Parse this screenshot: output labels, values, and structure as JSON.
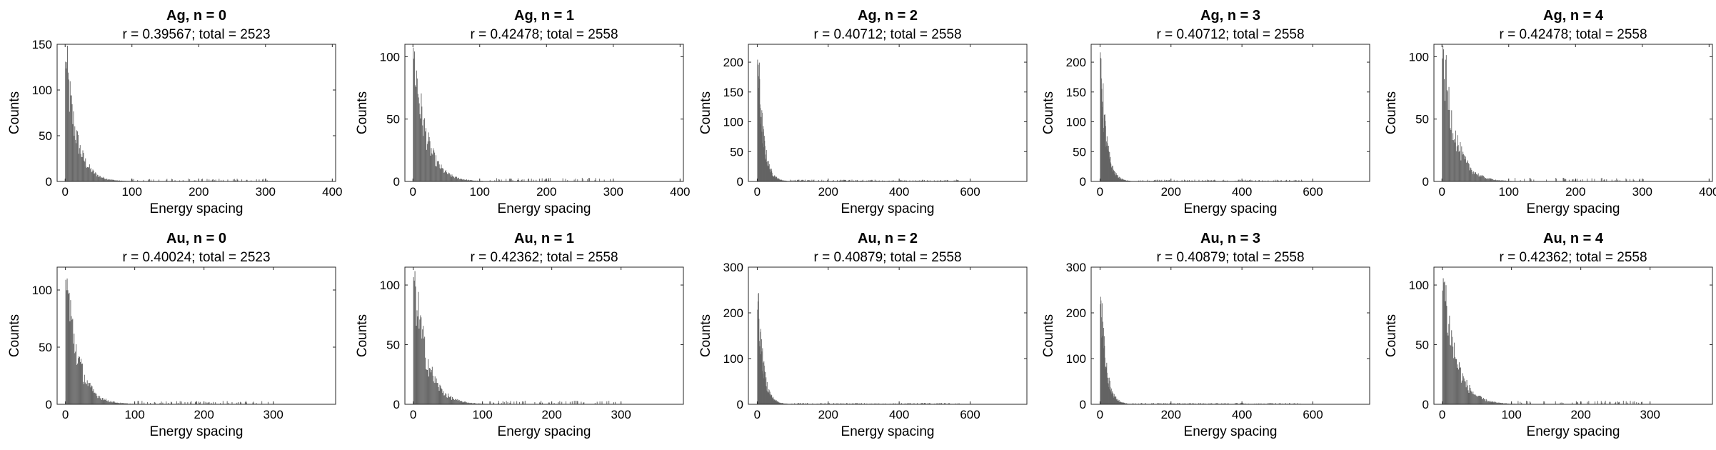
{
  "chart_data": [
    {
      "type": "bar",
      "title": "Ag, n = 0",
      "subtitle": "r = 0.39567; total = 2523",
      "xlabel": "Energy spacing",
      "ylabel": "Counts",
      "xlim": [
        -12,
        405
      ],
      "ylim": [
        0,
        150
      ],
      "xticks": [
        0,
        100,
        200,
        300,
        400
      ],
      "yticks": [
        0,
        50,
        100,
        150
      ],
      "bin_width": 1,
      "peak": 138,
      "decay": 16,
      "color": "#646464"
    },
    {
      "type": "bar",
      "title": "Ag, n = 1",
      "subtitle": "r = 0.42478; total = 2558",
      "xlabel": "Energy spacing",
      "ylabel": "Counts",
      "xlim": [
        -12,
        405
      ],
      "ylim": [
        0,
        110
      ],
      "xticks": [
        0,
        100,
        200,
        300,
        400
      ],
      "yticks": [
        0,
        50,
        100
      ],
      "bin_width": 1,
      "peak": 109,
      "decay": 18,
      "color": "#646464"
    },
    {
      "type": "bar",
      "title": "Ag, n = 2",
      "subtitle": "r = 0.40712; total = 2558",
      "xlabel": "Energy spacing",
      "ylabel": "Counts",
      "xlim": [
        -25,
        760
      ],
      "ylim": [
        0,
        230
      ],
      "xticks": [
        0,
        200,
        400,
        600
      ],
      "yticks": [
        0,
        50,
        100,
        150,
        200
      ],
      "bin_width": 1,
      "peak": 218,
      "decay": 15,
      "color": "#646464"
    },
    {
      "type": "bar",
      "title": "Ag, n = 3",
      "subtitle": "r = 0.40712; total = 2558",
      "xlabel": "Energy spacing",
      "ylabel": "Counts",
      "xlim": [
        -25,
        760
      ],
      "ylim": [
        0,
        230
      ],
      "xticks": [
        0,
        200,
        400,
        600
      ],
      "yticks": [
        0,
        50,
        100,
        150,
        200
      ],
      "bin_width": 1,
      "peak": 218,
      "decay": 15,
      "color": "#646464"
    },
    {
      "type": "bar",
      "title": "Ag, n = 4",
      "subtitle": "r = 0.42478; total = 2558",
      "xlabel": "Energy spacing",
      "ylabel": "Counts",
      "xlim": [
        -12,
        405
      ],
      "ylim": [
        0,
        110
      ],
      "xticks": [
        0,
        100,
        200,
        300,
        400
      ],
      "yticks": [
        0,
        50,
        100
      ],
      "bin_width": 1,
      "peak": 109,
      "decay": 18,
      "color": "#646464"
    },
    {
      "type": "bar",
      "title": "Au, n = 0",
      "subtitle": "r = 0.40024; total = 2523",
      "xlabel": "Energy spacing",
      "ylabel": "Counts",
      "xlim": [
        -12,
        390
      ],
      "ylim": [
        0,
        120
      ],
      "xticks": [
        0,
        100,
        200,
        300
      ],
      "yticks": [
        0,
        50,
        100
      ],
      "bin_width": 1,
      "peak": 116,
      "decay": 17,
      "color": "#646464"
    },
    {
      "type": "bar",
      "title": "Au, n = 1",
      "subtitle": "r = 0.42362; total = 2558",
      "xlabel": "Energy spacing",
      "ylabel": "Counts",
      "xlim": [
        -12,
        390
      ],
      "ylim": [
        0,
        115
      ],
      "xticks": [
        0,
        100,
        200,
        300
      ],
      "yticks": [
        0,
        50,
        100
      ],
      "bin_width": 1,
      "peak": 112,
      "decay": 18,
      "color": "#646464"
    },
    {
      "type": "bar",
      "title": "Au, n = 2",
      "subtitle": "r = 0.40879; total = 2558",
      "xlabel": "Energy spacing",
      "ylabel": "Counts",
      "xlim": [
        -25,
        760
      ],
      "ylim": [
        0,
        300
      ],
      "xticks": [
        0,
        200,
        400,
        600
      ],
      "yticks": [
        0,
        100,
        200,
        300
      ],
      "bin_width": 1,
      "peak": 242,
      "decay": 15,
      "color": "#646464"
    },
    {
      "type": "bar",
      "title": "Au, n = 3",
      "subtitle": "r = 0.40879; total = 2558",
      "xlabel": "Energy spacing",
      "ylabel": "Counts",
      "xlim": [
        -25,
        760
      ],
      "ylim": [
        0,
        300
      ],
      "xticks": [
        0,
        200,
        400,
        600
      ],
      "yticks": [
        0,
        100,
        200,
        300
      ],
      "bin_width": 1,
      "peak": 242,
      "decay": 15,
      "color": "#646464"
    },
    {
      "type": "bar",
      "title": "Au, n = 4",
      "subtitle": "r = 0.42362; total = 2558",
      "xlabel": "Energy spacing",
      "ylabel": "Counts",
      "xlim": [
        -12,
        390
      ],
      "ylim": [
        0,
        115
      ],
      "xticks": [
        0,
        100,
        200,
        300
      ],
      "yticks": [
        0,
        50,
        100
      ],
      "bin_width": 1,
      "peak": 112,
      "decay": 18,
      "color": "#646464"
    }
  ]
}
